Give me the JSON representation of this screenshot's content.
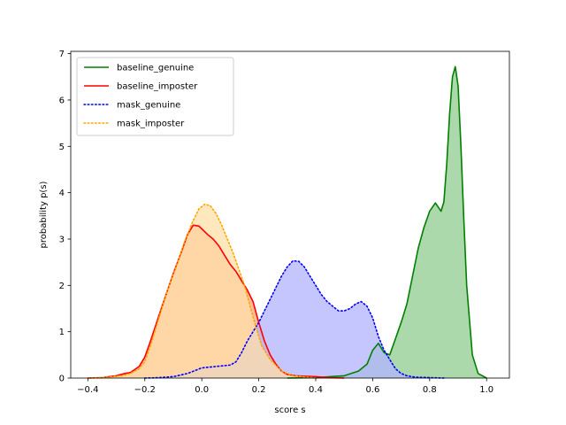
{
  "chart_data": {
    "type": "area",
    "title": "",
    "xlabel": "score s",
    "ylabel": "probability p(s)",
    "xlim": [
      -0.46,
      1.08
    ],
    "ylim": [
      0,
      7.05
    ],
    "xticks": [
      -0.4,
      -0.2,
      0.0,
      0.2,
      0.4,
      0.6,
      0.8,
      1.0
    ],
    "xtick_labels": [
      "−0.4",
      "−0.2",
      "0.0",
      "0.2",
      "0.4",
      "0.6",
      "0.8",
      "1.0"
    ],
    "yticks": [
      0,
      1,
      2,
      3,
      4,
      5,
      6,
      7
    ],
    "ytick_labels": [
      "0",
      "1",
      "2",
      "3",
      "4",
      "5",
      "6",
      "7"
    ],
    "grid": false,
    "legend_position": "top-left",
    "series": [
      {
        "name": "baseline_genuine",
        "color": "#008000",
        "fill": "#8fcc8f",
        "line_style": "solid",
        "x": [
          0.3,
          0.4,
          0.45,
          0.5,
          0.55,
          0.58,
          0.6,
          0.62,
          0.64,
          0.66,
          0.68,
          0.7,
          0.72,
          0.74,
          0.76,
          0.78,
          0.8,
          0.82,
          0.84,
          0.85,
          0.86,
          0.87,
          0.88,
          0.89,
          0.9,
          0.91,
          0.92,
          0.93,
          0.95,
          0.97,
          1.0
        ],
        "y": [
          0,
          0.01,
          0.03,
          0.05,
          0.15,
          0.3,
          0.6,
          0.75,
          0.55,
          0.5,
          0.85,
          1.2,
          1.6,
          2.2,
          2.8,
          3.25,
          3.6,
          3.78,
          3.6,
          3.8,
          4.6,
          5.7,
          6.5,
          6.72,
          6.3,
          5.0,
          3.4,
          2.0,
          0.5,
          0.1,
          0
        ]
      },
      {
        "name": "baseline_imposter",
        "color": "#ff0000",
        "fill": "#ffa680",
        "line_style": "solid",
        "x": [
          -0.4,
          -0.35,
          -0.3,
          -0.27,
          -0.25,
          -0.22,
          -0.2,
          -0.18,
          -0.15,
          -0.12,
          -0.1,
          -0.07,
          -0.05,
          -0.03,
          -0.01,
          0.0,
          0.02,
          0.04,
          0.06,
          0.08,
          0.1,
          0.12,
          0.14,
          0.16,
          0.18,
          0.2,
          0.22,
          0.24,
          0.26,
          0.28,
          0.3,
          0.33,
          0.36,
          0.4,
          0.45,
          0.5
        ],
        "y": [
          0,
          0.01,
          0.05,
          0.1,
          0.12,
          0.25,
          0.45,
          0.8,
          1.35,
          1.9,
          2.25,
          2.75,
          3.1,
          3.3,
          3.28,
          3.22,
          3.1,
          3.0,
          2.85,
          2.65,
          2.45,
          2.3,
          2.1,
          1.9,
          1.65,
          1.2,
          0.8,
          0.5,
          0.3,
          0.15,
          0.08,
          0.05,
          0.04,
          0.03,
          0.01,
          0
        ]
      },
      {
        "name": "mask_genuine",
        "color": "#0000ff",
        "fill": "#b3b3ff",
        "line_style": "dotted",
        "x": [
          -0.2,
          -0.15,
          -0.1,
          -0.05,
          0.0,
          0.05,
          0.1,
          0.12,
          0.14,
          0.16,
          0.18,
          0.2,
          0.22,
          0.24,
          0.26,
          0.28,
          0.3,
          0.32,
          0.34,
          0.36,
          0.38,
          0.4,
          0.42,
          0.44,
          0.46,
          0.48,
          0.5,
          0.52,
          0.54,
          0.56,
          0.58,
          0.6,
          0.62,
          0.64,
          0.66,
          0.68,
          0.7,
          0.72,
          0.75,
          0.8,
          0.85
        ],
        "y": [
          0,
          0.01,
          0.03,
          0.1,
          0.22,
          0.25,
          0.28,
          0.35,
          0.55,
          0.8,
          1.0,
          1.2,
          1.45,
          1.7,
          1.95,
          2.2,
          2.4,
          2.53,
          2.52,
          2.4,
          2.2,
          2.0,
          1.8,
          1.65,
          1.55,
          1.45,
          1.45,
          1.5,
          1.6,
          1.65,
          1.55,
          1.3,
          0.9,
          0.6,
          0.4,
          0.2,
          0.1,
          0.05,
          0.02,
          0.01,
          0
        ]
      },
      {
        "name": "mask_imposter",
        "color": "#ffa500",
        "fill": "#ffe0a8",
        "line_style": "dotted",
        "x": [
          -0.4,
          -0.33,
          -0.28,
          -0.25,
          -0.22,
          -0.2,
          -0.18,
          -0.15,
          -0.12,
          -0.09,
          -0.06,
          -0.03,
          -0.01,
          0.01,
          0.03,
          0.05,
          0.07,
          0.09,
          0.11,
          0.13,
          0.15,
          0.17,
          0.19,
          0.21,
          0.24,
          0.28,
          0.32,
          0.4
        ],
        "y": [
          0,
          0.02,
          0.05,
          0.1,
          0.2,
          0.35,
          0.7,
          1.3,
          1.9,
          2.4,
          2.95,
          3.4,
          3.65,
          3.75,
          3.72,
          3.55,
          3.3,
          3.0,
          2.7,
          2.35,
          2.0,
          1.55,
          1.1,
          0.7,
          0.4,
          0.15,
          0.05,
          0
        ]
      }
    ]
  }
}
